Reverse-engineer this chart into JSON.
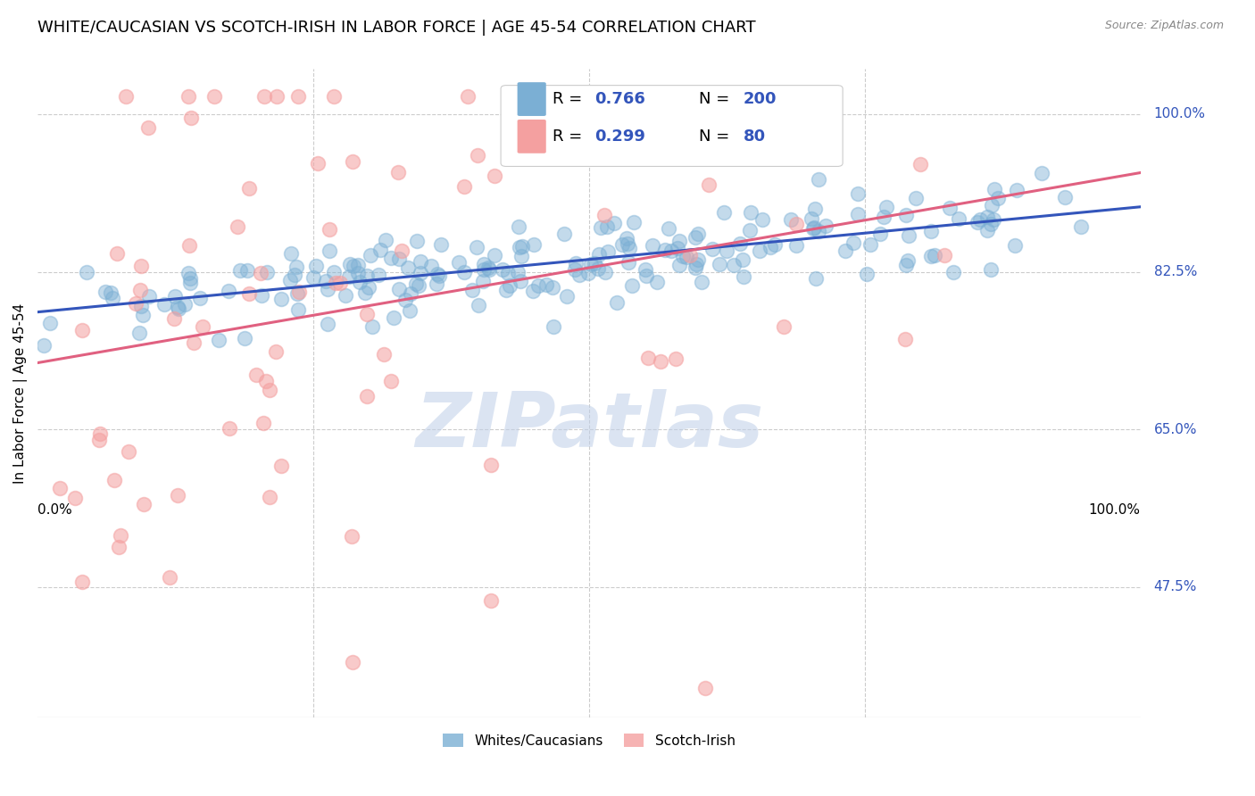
{
  "title": "WHITE/CAUCASIAN VS SCOTCH-IRISH IN LABOR FORCE | AGE 45-54 CORRELATION CHART",
  "source": "Source: ZipAtlas.com",
  "ylabel": "In Labor Force | Age 45-54",
  "ytick_labels": [
    "100.0%",
    "82.5%",
    "65.0%",
    "47.5%"
  ],
  "ytick_values": [
    1.0,
    0.825,
    0.65,
    0.475
  ],
  "xlim": [
    0.0,
    1.0
  ],
  "ylim": [
    0.33,
    1.05
  ],
  "blue_color": "#7BAFD4",
  "pink_color": "#F4A0A0",
  "blue_line_color": "#3355BB",
  "pink_line_color": "#E06080",
  "blue_fill_alpha": 0.35,
  "pink_fill_alpha": 0.35,
  "R_blue": 0.766,
  "N_blue": 200,
  "R_pink": 0.299,
  "N_pink": 80,
  "watermark": "ZIPatlas",
  "background_color": "#FFFFFF",
  "grid_color": "#CCCCCC",
  "title_fontsize": 13,
  "axis_label_fontsize": 11,
  "tick_label_fontsize": 11,
  "legend_fontsize": 13
}
